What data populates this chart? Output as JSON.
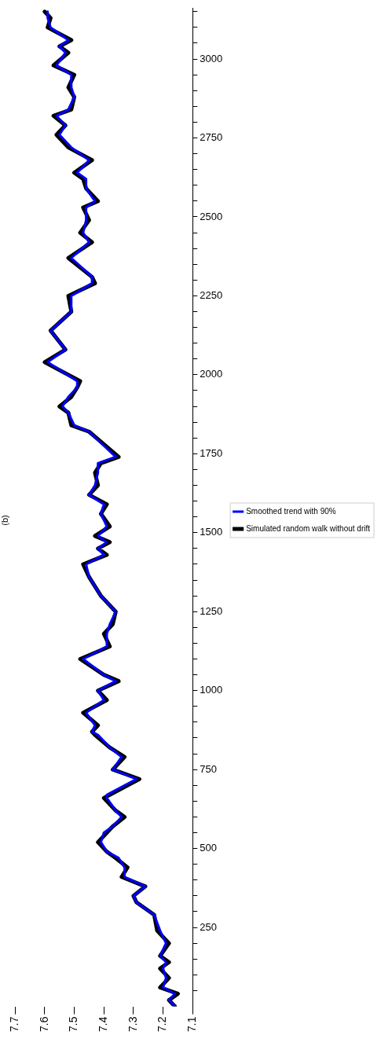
{
  "chart_data": {
    "type": "line",
    "title": "(b)",
    "series": [
      {
        "name": "Simulated random walk without drift",
        "color": "#000000",
        "x": [
          7.16,
          7.18,
          7.15,
          7.21,
          7.18,
          7.21,
          7.18,
          7.21,
          7.18,
          7.22,
          7.23,
          7.29,
          7.3,
          7.26,
          7.34,
          7.32,
          7.36,
          7.39,
          7.42,
          7.39,
          7.37,
          7.33,
          7.36,
          7.4,
          7.38,
          7.28,
          7.37,
          7.33,
          7.38,
          7.43,
          7.44,
          7.42,
          7.47,
          7.39,
          7.42,
          7.35,
          7.4,
          7.48,
          7.38,
          7.4,
          7.37,
          7.36,
          7.41,
          7.45,
          7.47,
          7.39,
          7.42,
          7.38,
          7.43,
          7.38,
          7.41,
          7.39,
          7.45,
          7.42,
          7.43,
          7.41,
          7.35,
          7.45,
          7.51,
          7.52,
          7.55,
          7.51,
          7.49,
          7.48,
          7.6,
          7.53,
          7.58,
          7.51,
          7.52,
          7.43,
          7.44,
          7.52,
          7.44,
          7.48,
          7.45,
          7.47,
          7.42,
          7.46,
          7.47,
          7.5,
          7.44,
          7.52,
          7.56,
          7.53,
          7.57,
          7.51,
          7.5,
          7.52,
          7.5,
          7.57,
          7.52,
          7.55,
          7.51,
          7.59,
          7.58,
          7.6
        ],
        "values": [
          0,
          20,
          40,
          60,
          90,
          120,
          140,
          160,
          200,
          240,
          290,
          330,
          350,
          380,
          410,
          440,
          470,
          490,
          520,
          550,
          570,
          600,
          620,
          660,
          670,
          720,
          750,
          790,
          820,
          860,
          870,
          890,
          930,
          970,
          1000,
          1030,
          1050,
          1100,
          1140,
          1180,
          1210,
          1250,
          1300,
          1360,
          1400,
          1430,
          1450,
          1470,
          1490,
          1520,
          1560,
          1590,
          1620,
          1650,
          1690,
          1720,
          1740,
          1820,
          1840,
          1880,
          1900,
          1930,
          1960,
          1980,
          2040,
          2080,
          2140,
          2200,
          2250,
          2290,
          2310,
          2370,
          2420,
          2450,
          2490,
          2530,
          2550,
          2590,
          2620,
          2640,
          2680,
          2720,
          2760,
          2790,
          2820,
          2840,
          2880,
          2910,
          2950,
          2980,
          3020,
          3040,
          3060,
          3100,
          3130,
          3150
        ]
      },
      {
        "name": "Smoothed trend with 90%",
        "color": "#0000ff",
        "x": [
          7.16,
          7.18,
          7.16,
          7.2,
          7.19,
          7.2,
          7.19,
          7.21,
          7.19,
          7.21,
          7.23,
          7.29,
          7.3,
          7.26,
          7.33,
          7.33,
          7.35,
          7.39,
          7.41,
          7.4,
          7.37,
          7.34,
          7.36,
          7.39,
          7.39,
          7.29,
          7.37,
          7.34,
          7.38,
          7.42,
          7.44,
          7.43,
          7.46,
          7.4,
          7.42,
          7.36,
          7.4,
          7.47,
          7.39,
          7.39,
          7.38,
          7.36,
          7.41,
          7.45,
          7.46,
          7.4,
          7.42,
          7.39,
          7.42,
          7.39,
          7.41,
          7.4,
          7.45,
          7.43,
          7.42,
          7.42,
          7.36,
          7.45,
          7.5,
          7.52,
          7.54,
          7.52,
          7.49,
          7.49,
          7.59,
          7.53,
          7.58,
          7.51,
          7.51,
          7.44,
          7.44,
          7.51,
          7.45,
          7.47,
          7.46,
          7.46,
          7.43,
          7.46,
          7.46,
          7.49,
          7.45,
          7.51,
          7.55,
          7.53,
          7.56,
          7.52,
          7.5,
          7.51,
          7.51,
          7.56,
          7.53,
          7.55,
          7.52,
          7.58,
          7.59,
          7.59
        ],
        "values": [
          0,
          20,
          40,
          60,
          90,
          120,
          140,
          160,
          200,
          240,
          290,
          330,
          350,
          380,
          410,
          440,
          470,
          490,
          520,
          550,
          570,
          600,
          620,
          660,
          670,
          720,
          750,
          790,
          820,
          860,
          870,
          890,
          930,
          970,
          1000,
          1030,
          1050,
          1100,
          1140,
          1180,
          1210,
          1250,
          1300,
          1360,
          1400,
          1430,
          1450,
          1470,
          1490,
          1520,
          1560,
          1590,
          1620,
          1650,
          1690,
          1720,
          1740,
          1820,
          1840,
          1880,
          1900,
          1930,
          1960,
          1980,
          2040,
          2080,
          2140,
          2200,
          2250,
          2290,
          2310,
          2370,
          2420,
          2450,
          2490,
          2530,
          2550,
          2590,
          2620,
          2640,
          2680,
          2720,
          2760,
          2790,
          2820,
          2840,
          2880,
          2910,
          2950,
          2980,
          3020,
          3040,
          3060,
          3100,
          3130,
          3150
        ]
      }
    ],
    "xlim": [
      7.7,
      7.1
    ],
    "xticks": [
      7.7,
      7.6,
      7.5,
      7.4,
      7.3,
      7.2,
      7.1
    ],
    "ylim": [
      0,
      3160
    ],
    "yticks": [
      {
        "value": 50,
        "label": null
      },
      {
        "value": 100,
        "label": null
      },
      {
        "value": 150,
        "label": null
      },
      {
        "value": 200,
        "label": null
      },
      250,
      {
        "value": 300,
        "label": null
      },
      {
        "value": 350,
        "label": null
      },
      {
        "value": 400,
        "label": null
      },
      {
        "value": 450,
        "label": null
      },
      500,
      {
        "value": 550,
        "label": null
      },
      {
        "value": 600,
        "label": null
      },
      {
        "value": 650,
        "label": null
      },
      {
        "value": 700,
        "label": null
      },
      750,
      {
        "value": 800,
        "label": null
      },
      {
        "value": 850,
        "label": null
      },
      {
        "value": 900,
        "label": null
      },
      {
        "value": 950,
        "label": null
      },
      1000,
      {
        "value": 1050,
        "label": null
      },
      {
        "value": 1100,
        "label": null
      },
      {
        "value": 1150,
        "label": null
      },
      {
        "value": 1200,
        "label": null
      },
      1250,
      {
        "value": 1300,
        "label": null
      },
      {
        "value": 1350,
        "label": null
      },
      {
        "value": 1400,
        "label": null
      },
      {
        "value": 1450,
        "label": null
      },
      1500,
      {
        "value": 1550,
        "label": null
      },
      {
        "value": 1600,
        "label": null
      },
      {
        "value": 1650,
        "label": null
      },
      {
        "value": 1700,
        "label": null
      },
      1750,
      {
        "value": 1800,
        "label": null
      },
      {
        "value": 1850,
        "label": null
      },
      {
        "value": 1900,
        "label": null
      },
      {
        "value": 1950,
        "label": null
      },
      2000,
      {
        "value": 2050,
        "label": null
      },
      {
        "value": 2100,
        "label": null
      },
      {
        "value": 2150,
        "label": null
      },
      {
        "value": 2200,
        "label": null
      },
      2250,
      {
        "value": 2300,
        "label": null
      },
      {
        "value": 2350,
        "label": null
      },
      {
        "value": 2400,
        "label": null
      },
      {
        "value": 2450,
        "label": null
      },
      2500,
      {
        "value": 2550,
        "label": null
      },
      {
        "value": 2600,
        "label": null
      },
      {
        "value": 2650,
        "label": null
      },
      {
        "value": 2700,
        "label": null
      },
      2750,
      {
        "value": 2800,
        "label": null
      },
      {
        "value": 2850,
        "label": null
      },
      {
        "value": 2900,
        "label": null
      },
      {
        "value": 2950,
        "label": null
      },
      3000,
      {
        "value": 3050,
        "label": null
      },
      {
        "value": 3100,
        "label": null
      },
      {
        "value": 3150,
        "label": null
      }
    ],
    "legend": "right",
    "grid": false,
    "marker": "none"
  }
}
